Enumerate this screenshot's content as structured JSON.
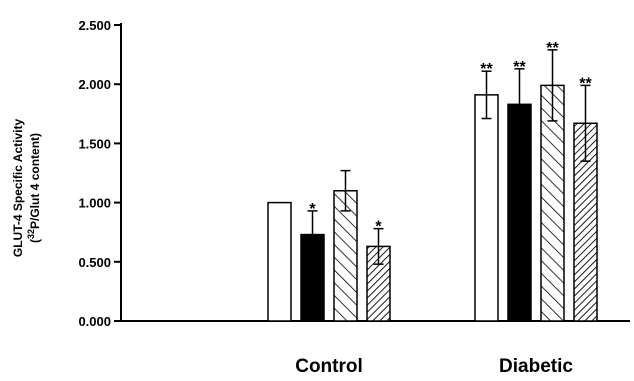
{
  "chart_data": {
    "type": "bar",
    "title": "",
    "ylabel_line1": "GLUT-4 Specific Activity",
    "ylabel_line2_open": "(",
    "ylabel_line2_sup": "32",
    "ylabel_line2_rest": "P/Glut 4 content)",
    "xlabel": "",
    "ylim": [
      0,
      2.5
    ],
    "yticks": [
      "0.000",
      "0.500",
      "1.000",
      "1.500",
      "2.000",
      "2.500"
    ],
    "categories": [
      "Control",
      "Diabetic"
    ],
    "series": [
      {
        "pattern": "open",
        "values": [
          1.0,
          1.91
        ],
        "errors": [
          0.0,
          0.2
        ],
        "sig": [
          "",
          "**"
        ]
      },
      {
        "pattern": "solid",
        "values": [
          0.73,
          1.83
        ],
        "errors": [
          0.2,
          0.3
        ],
        "sig": [
          "*",
          "**"
        ]
      },
      {
        "pattern": "hatch-light",
        "values": [
          1.1,
          1.99
        ],
        "errors": [
          0.17,
          0.3
        ],
        "sig": [
          "",
          "**"
        ]
      },
      {
        "pattern": "hatch-dense",
        "values": [
          0.63,
          1.67
        ],
        "errors": [
          0.15,
          0.32
        ],
        "sig": [
          "*",
          "**"
        ]
      }
    ],
    "grid": false,
    "legend": "none"
  }
}
